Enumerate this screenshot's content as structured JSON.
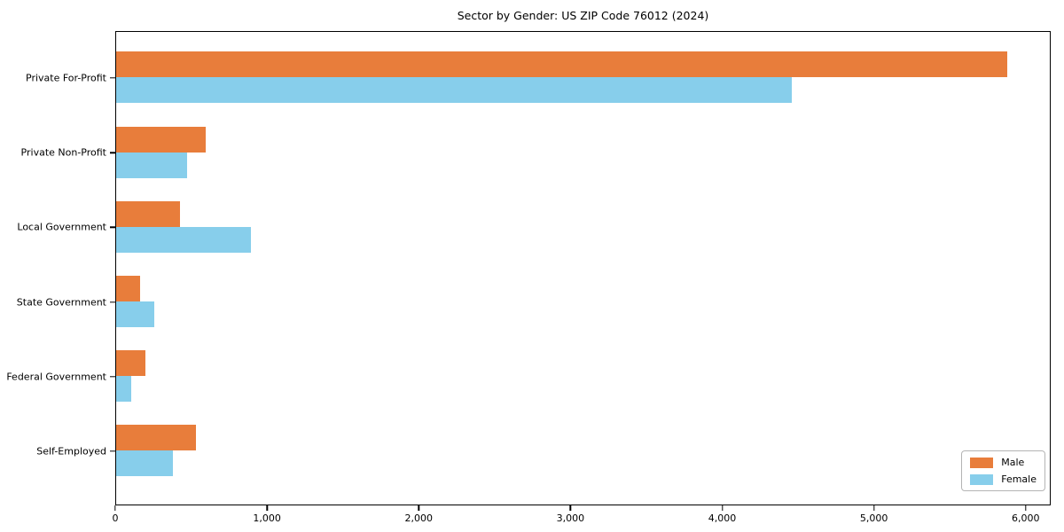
{
  "title": "Sector by Gender: US ZIP Code 76012 (2024)",
  "chart_data": {
    "type": "bar",
    "orientation": "horizontal",
    "title": "Sector by Gender: US ZIP Code 76012 (2024)",
    "categories": [
      "Private For-Profit",
      "Private Non-Profit",
      "Local Government",
      "State Government",
      "Federal Government",
      "Self-Employed"
    ],
    "series": [
      {
        "name": "Male",
        "color": "#e87d3b",
        "values": [
          5870,
          590,
          420,
          160,
          190,
          525
        ]
      },
      {
        "name": "Female",
        "color": "#87ceeb",
        "values": [
          4450,
          470,
          890,
          250,
          100,
          375
        ]
      }
    ],
    "xlim": [
      0,
      6165
    ],
    "xticks": [
      0,
      1000,
      2000,
      3000,
      4000,
      5000,
      6000
    ],
    "xtick_labels": [
      "0",
      "1,000",
      "2,000",
      "3,000",
      "4,000",
      "5,000",
      "6,000"
    ],
    "xlabel": "",
    "ylabel": "",
    "grid": false,
    "legend_position": "lower right"
  },
  "legend": {
    "items": [
      {
        "label": "Male",
        "color": "#e87d3b"
      },
      {
        "label": "Female",
        "color": "#87ceeb"
      }
    ]
  }
}
